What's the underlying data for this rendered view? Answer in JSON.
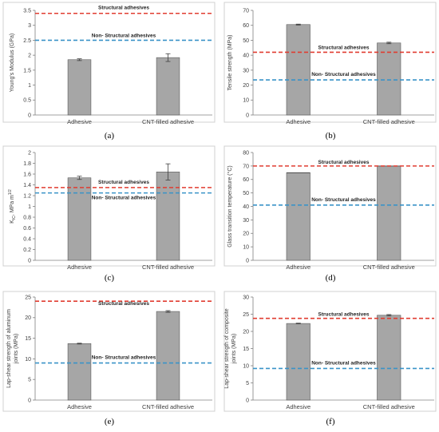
{
  "chart_data": [
    {
      "type": "bar",
      "panel_label": "(a)",
      "categories": [
        "Adhesive",
        "CNT-filled adhesive"
      ],
      "values": [
        1.85,
        1.92
      ],
      "errors": [
        0.03,
        0.13
      ],
      "ylabel": "Young's Modulus (GPa)",
      "ylim": [
        0,
        3.5
      ],
      "yticks": [
        0,
        0.5,
        1,
        1.5,
        2,
        2.5,
        3,
        3.5
      ],
      "ytick_labels": [
        "0",
        "0.5",
        "1",
        "1.5",
        "2",
        "2.5",
        "3",
        "3.5"
      ],
      "reference_lines": [
        {
          "label": "Structural adhesives",
          "value": 3.4,
          "color": "#e03c31"
        },
        {
          "label": "Non- Structural adhesives",
          "value": 2.5,
          "color": "#3a93c8"
        }
      ]
    },
    {
      "type": "bar",
      "panel_label": "(b)",
      "categories": [
        "Adhesive",
        "CNT-filled adhesive"
      ],
      "values": [
        60.5,
        48.2
      ],
      "errors": [
        0.3,
        0.5
      ],
      "ylabel": "Tensile strength (MPa)",
      "ylim": [
        0,
        70
      ],
      "yticks": [
        0,
        10,
        20,
        30,
        40,
        50,
        60,
        70
      ],
      "ytick_labels": [
        "0",
        "10",
        "20",
        "30",
        "40",
        "50",
        "60",
        "70"
      ],
      "reference_lines": [
        {
          "label": "Structural adhesives",
          "value": 42,
          "color": "#e03c31"
        },
        {
          "label": "Non- Structural adhesives",
          "value": 23.5,
          "color": "#3a93c8"
        }
      ]
    },
    {
      "type": "bar",
      "panel_label": "(c)",
      "categories": [
        "Adhesive",
        "CNT-filled adhesive"
      ],
      "values": [
        1.53,
        1.64
      ],
      "errors": [
        0.03,
        0.15
      ],
      "ylabel": "K",
      "ylabel_sub": "IC",
      "ylabel_rest": ", MPa m",
      "ylabel_sup": "1/2",
      "ylim": [
        0,
        2
      ],
      "yticks": [
        0,
        0.2,
        0.4,
        0.6,
        0.8,
        1,
        1.2,
        1.4,
        1.6,
        1.8,
        2
      ],
      "ytick_labels": [
        "0",
        "0.2",
        "0.4",
        "0.6",
        "0.8",
        "1",
        "1.2",
        "1.4",
        "1.6",
        "1.8",
        "2"
      ],
      "reference_lines": [
        {
          "label": "Structural adhesives",
          "value": 1.35,
          "color": "#e03c31"
        },
        {
          "label": "Non- Structural adhesives",
          "value": 1.25,
          "color": "#3a93c8"
        }
      ]
    },
    {
      "type": "bar",
      "panel_label": "(d)",
      "categories": [
        "Adhesive",
        "CNT-filled adhesive"
      ],
      "values": [
        65,
        70
      ],
      "errors": [
        0,
        0
      ],
      "ylabel": "Glass transition temperature (°C)",
      "ylim": [
        0,
        80
      ],
      "yticks": [
        0,
        10,
        20,
        30,
        40,
        50,
        60,
        70,
        80
      ],
      "ytick_labels": [
        "0",
        "10",
        "20",
        "30",
        "40",
        "50",
        "60",
        "70",
        "80"
      ],
      "reference_lines": [
        {
          "label": "Structural adhesives",
          "value": 70,
          "color": "#e03c31"
        },
        {
          "label": "Non- Structural adhesives",
          "value": 41,
          "color": "#3a93c8"
        }
      ]
    },
    {
      "type": "bar",
      "panel_label": "(e)",
      "categories": [
        "Adhesive",
        "CNT-filled adhesive"
      ],
      "values": [
        13.7,
        21.5
      ],
      "errors": [
        0.1,
        0.2
      ],
      "ylabel": "Lap-shear strength of aluminum",
      "ylabel_line2": "joints (MPa)",
      "ylim": [
        0,
        25
      ],
      "yticks": [
        0,
        5,
        10,
        15,
        20,
        25
      ],
      "ytick_labels": [
        "0",
        "5",
        "10",
        "15",
        "20",
        "25"
      ],
      "reference_lines": [
        {
          "label": "Structural adhesives",
          "value": 24,
          "color": "#e03c31"
        },
        {
          "label": "Non- Structural adhesives",
          "value": 9,
          "color": "#3a93c8"
        }
      ]
    },
    {
      "type": "bar",
      "panel_label": "(f)",
      "categories": [
        "Adhesive",
        "CNT-filled adhesive"
      ],
      "values": [
        22.3,
        24.7
      ],
      "errors": [
        0.1,
        0.2
      ],
      "ylabel": "Lap-shear strength of composite",
      "ylabel_line2": "joints (MPa)",
      "ylim": [
        0,
        30
      ],
      "yticks": [
        0,
        5,
        10,
        15,
        20,
        25,
        30
      ],
      "ytick_labels": [
        "0",
        "5",
        "10",
        "15",
        "20",
        "25",
        "30"
      ],
      "reference_lines": [
        {
          "label": "Structural adhesives",
          "value": 23.8,
          "color": "#e03c31"
        },
        {
          "label": "Non- Structural adhesives",
          "value": 9.2,
          "color": "#3a93c8"
        }
      ]
    }
  ]
}
